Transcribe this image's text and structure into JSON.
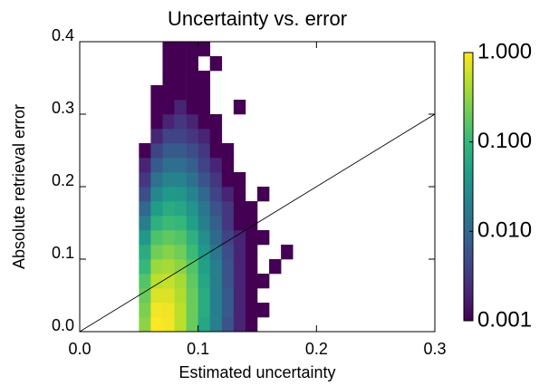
{
  "chart_data": {
    "type": "heatmap",
    "title": "Uncertainty vs. error",
    "x_label": "Estimated uncertainty",
    "y_label": "Absolute retrieval error",
    "xlim": [
      0,
      0.3
    ],
    "ylim": [
      0,
      0.4
    ],
    "xticks": [
      {
        "value": 0,
        "label": "0.0"
      },
      0.1,
      0.2,
      0.3
    ],
    "yticks": [
      {
        "value": 0,
        "label": "0.0"
      },
      0.1,
      0.2,
      0.3,
      0.4
    ],
    "x_edges": [
      0.05,
      0.06,
      0.07,
      0.08,
      0.09,
      0.1,
      0.11,
      0.12,
      0.13,
      0.14,
      0.15,
      0.16,
      0.17,
      0.18,
      0.19
    ],
    "y_edges": [
      0,
      0.02,
      0.04,
      0.06,
      0.08,
      0.1,
      0.12,
      0.14,
      0.16,
      0.18,
      0.2,
      0.22,
      0.24,
      0.26,
      0.28,
      0.3,
      0.32,
      0.34,
      0.36,
      0.38,
      0.4
    ],
    "values": [
      [
        0.3,
        1,
        0.9,
        0.5,
        0.2,
        0.06,
        0.02,
        0.006,
        0.002,
        0.001,
        null,
        null,
        null,
        null
      ],
      [
        0.25,
        0.9,
        0.85,
        0.5,
        0.2,
        0.07,
        0.02,
        0.007,
        0.002,
        0.001,
        0.001,
        null,
        null,
        null
      ],
      [
        0.2,
        0.7,
        0.7,
        0.45,
        0.2,
        0.07,
        0.02,
        0.007,
        0.002,
        0.001,
        null,
        null,
        null,
        null
      ],
      [
        0.15,
        0.5,
        0.55,
        0.4,
        0.18,
        0.06,
        0.02,
        0.006,
        0.002,
        0.001,
        0.001,
        null,
        null,
        null
      ],
      [
        0.1,
        0.35,
        0.4,
        0.3,
        0.15,
        0.05,
        0.02,
        0.006,
        0.002,
        0.001,
        null,
        0.001,
        null,
        null
      ],
      [
        0.07,
        0.22,
        0.28,
        0.22,
        0.11,
        0.04,
        0.015,
        0.005,
        0.002,
        0.001,
        null,
        null,
        0.001,
        null
      ],
      [
        0.04,
        0.14,
        0.18,
        0.15,
        0.08,
        0.03,
        0.01,
        0.004,
        0.002,
        0.001,
        0.001,
        null,
        null,
        null
      ],
      [
        0.02,
        0.08,
        0.11,
        0.1,
        0.05,
        0.02,
        0.008,
        0.003,
        0.001,
        0.001,
        null,
        null,
        null,
        null
      ],
      [
        0.01,
        0.045,
        0.07,
        0.06,
        0.035,
        0.015,
        0.006,
        0.003,
        0.001,
        0.001,
        null,
        null,
        null,
        null
      ],
      [
        0.005,
        0.025,
        0.04,
        0.038,
        0.022,
        0.01,
        0.004,
        0.002,
        0.001,
        null,
        0.001,
        null,
        null,
        null
      ],
      [
        0.003,
        0.013,
        0.022,
        0.022,
        0.013,
        0.006,
        0.003,
        0.001,
        0.001,
        null,
        null,
        null,
        null,
        null
      ],
      [
        0.002,
        0.007,
        0.012,
        0.012,
        0.008,
        0.004,
        0.002,
        0.001,
        null,
        null,
        null,
        null,
        null,
        null
      ],
      [
        0.001,
        0.004,
        0.007,
        0.007,
        0.005,
        0.003,
        0.001,
        0.001,
        null,
        null,
        null,
        null,
        null,
        null
      ],
      [
        null,
        0.002,
        0.004,
        0.004,
        0.003,
        0.002,
        0.001,
        null,
        null,
        null,
        null,
        null,
        null,
        null
      ],
      [
        null,
        0.001,
        0.002,
        0.003,
        0.002,
        0.001,
        0.001,
        null,
        null,
        null,
        null,
        null,
        null,
        null
      ],
      [
        null,
        0.001,
        0.001,
        0.002,
        0.001,
        0.001,
        null,
        null,
        0.001,
        null,
        null,
        null,
        null,
        null
      ],
      [
        null,
        0.001,
        0.001,
        0.001,
        0.001,
        0.001,
        null,
        null,
        null,
        null,
        null,
        null,
        null,
        null
      ],
      [
        null,
        null,
        0.001,
        0.001,
        0.001,
        0.001,
        null,
        null,
        null,
        null,
        null,
        null,
        null,
        null
      ],
      [
        null,
        null,
        0.001,
        0.001,
        0.001,
        null,
        0.001,
        null,
        null,
        null,
        null,
        null,
        null,
        null
      ],
      [
        null,
        null,
        0.001,
        0.001,
        0.001,
        0.001,
        null,
        null,
        null,
        null,
        null,
        null,
        null,
        null
      ]
    ],
    "colormap": "viridis",
    "color_scale": "log",
    "clim": [
      0.001,
      1
    ],
    "cticks": [
      {
        "value": 1,
        "label": "1.000"
      },
      {
        "value": 0.1,
        "label": "0.100"
      },
      {
        "value": 0.01,
        "label": "0.010"
      },
      {
        "value": 0.001,
        "label": "0.001"
      }
    ],
    "reference_line": "y=x"
  }
}
